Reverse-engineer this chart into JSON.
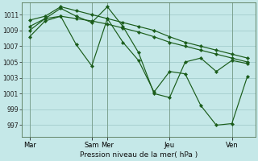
{
  "xlabel": "Pression niveau de la mer( hPa )",
  "bg_color": "#c5e8e8",
  "grid_color": "#a8d0d0",
  "line_color": "#1a5c1a",
  "ylim": [
    995.5,
    1012.5
  ],
  "yticks": [
    997,
    999,
    1001,
    1003,
    1005,
    1007,
    1009,
    1011
  ],
  "xtick_positions": [
    0,
    4,
    5,
    9,
    13
  ],
  "xtick_labels": [
    "Mar",
    "Sam",
    "Mer",
    "Jeu",
    "Ven"
  ],
  "xlim": [
    -0.5,
    14.5
  ],
  "lines": [
    {
      "x": [
        0,
        1,
        2,
        3,
        4,
        5,
        6,
        7,
        8,
        9,
        10,
        11,
        12,
        13,
        14
      ],
      "y": [
        1008.2,
        1010.2,
        1010.8,
        1010.5,
        1010.2,
        1009.8,
        1009.3,
        1008.8,
        1008.2,
        1007.5,
        1007.0,
        1006.5,
        1006.0,
        1005.5,
        1005.0
      ]
    },
    {
      "x": [
        0,
        1,
        2,
        3,
        4,
        5,
        6,
        7,
        8,
        9,
        10,
        11,
        12,
        13,
        14
      ],
      "y": [
        1010.3,
        1010.8,
        1012.0,
        1011.5,
        1011.0,
        1010.5,
        1010.0,
        1009.5,
        1009.0,
        1008.2,
        1007.5,
        1007.0,
        1006.5,
        1006.0,
        1005.5
      ]
    },
    {
      "x": [
        0,
        1,
        2,
        3,
        4,
        5,
        6,
        7,
        8,
        9,
        10,
        11,
        12,
        13,
        14
      ],
      "y": [
        1009.0,
        1010.5,
        1011.8,
        1010.8,
        1010.0,
        1012.0,
        1009.5,
        1006.2,
        1001.0,
        1000.5,
        1005.0,
        1005.5,
        1003.8,
        1005.2,
        1004.8
      ]
    },
    {
      "x": [
        0,
        1,
        2,
        3,
        4,
        5,
        6,
        7,
        8,
        9,
        10,
        11,
        12,
        13,
        14
      ],
      "y": [
        1009.5,
        1010.5,
        1010.8,
        1007.2,
        1004.5,
        1010.5,
        1007.5,
        1005.2,
        1001.2,
        1003.8,
        1003.5,
        999.5,
        997.0,
        997.2,
        1003.2
      ]
    }
  ]
}
